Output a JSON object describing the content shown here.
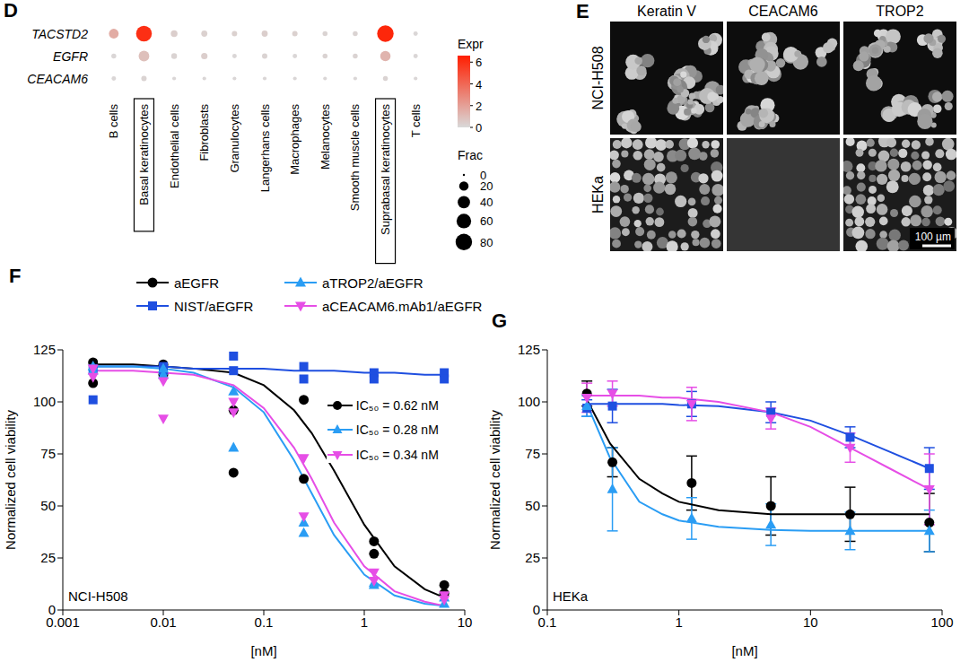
{
  "chart_data": [
    {
      "panel": "D",
      "type": "dot",
      "rows": [
        "TACSTD2",
        "EGFR",
        "CEACAM6"
      ],
      "categories": [
        "B cells",
        "Basal keratinocytes",
        "Endothelial cells",
        "Fibroblasts",
        "Granulocytes",
        "Langerhans cells",
        "Macrophages",
        "Melanocytes",
        "Smooth muscle cells",
        "Suprabasal keratinocytes",
        "T cells"
      ],
      "highlighted": [
        "Basal keratinocytes",
        "Suprabasal keratinocytes"
      ],
      "expr": [
        [
          1.6,
          6.0,
          0.4,
          0.3,
          0.3,
          0.4,
          0.3,
          0.2,
          0.2,
          6.3,
          0.1
        ],
        [
          0.1,
          0.9,
          0.2,
          0.4,
          0.1,
          0.2,
          0.1,
          0.2,
          0.2,
          1.3,
          0.1
        ],
        [
          0.1,
          0.2,
          0.1,
          0.1,
          0.1,
          0.1,
          0.1,
          0.1,
          0.1,
          0.2,
          0.1
        ]
      ],
      "frac": [
        [
          22,
          72,
          8,
          6,
          4,
          6,
          4,
          3,
          3,
          80,
          2
        ],
        [
          3,
          28,
          5,
          7,
          2,
          4,
          2,
          3,
          3,
          26,
          2
        ],
        [
          2,
          4,
          1,
          1,
          1,
          1,
          1,
          1,
          1,
          3,
          1
        ]
      ],
      "color_bar": {
        "title": "Expr",
        "range": [
          0,
          6.6
        ],
        "ticks": [
          0,
          2,
          4,
          6
        ],
        "colors": [
          "#d9d9d9",
          "#ff1e00"
        ]
      },
      "size_legend": {
        "title": "Frac",
        "values": [
          0,
          20,
          40,
          60,
          80
        ]
      }
    },
    {
      "panel": "F",
      "type": "scatter",
      "label": "NCI-H508",
      "xlabel": "[nM]",
      "ylabel": "Normalized cell viability",
      "log": "x",
      "xlim": [
        0.001,
        10
      ],
      "xticks": [
        0.001,
        0.01,
        0.1,
        1,
        10
      ],
      "ylim": [
        0,
        125
      ],
      "yticks": [
        0,
        25,
        50,
        75,
        100,
        125
      ],
      "legend": "top",
      "series": [
        {
          "name": "aEGFR",
          "color": "#000000",
          "marker": "circle",
          "x": [
            0.002,
            0.002,
            0.01,
            0.01,
            0.05,
            0.05,
            0.25,
            0.25,
            1.25,
            1.25,
            6.25,
            6.25
          ],
          "values": [
            119,
            109,
            118,
            113,
            96,
            66,
            101,
            63,
            33,
            27,
            12,
            8
          ],
          "fit": {
            "x": [
              0.002,
              0.005,
              0.01,
              0.02,
              0.05,
              0.1,
              0.2,
              0.3,
              0.5,
              1,
              2,
              4,
              6.25
            ],
            "values": [
              118,
              118,
              117,
              116,
              114,
              108,
              96,
              85,
              67,
              41,
              21,
              10,
              6
            ]
          }
        },
        {
          "name": "NIST/aEGFR",
          "color": "#1f4fe0",
          "marker": "square",
          "x": [
            0.002,
            0.002,
            0.01,
            0.01,
            0.05,
            0.05,
            0.25,
            0.25,
            1.25,
            1.25,
            6.25,
            6.25
          ],
          "values": [
            101,
            116,
            117,
            115,
            122,
            115,
            117,
            111,
            114,
            111,
            114,
            111
          ],
          "fit": {
            "x": [
              0.002,
              0.005,
              0.01,
              0.02,
              0.05,
              0.1,
              0.2,
              0.3,
              0.5,
              1,
              2,
              4,
              6.25
            ],
            "values": [
              117,
              117,
              117,
              116,
              116,
              116,
              115,
              115,
              115,
              114,
              114,
              113,
              113
            ]
          }
        },
        {
          "name": "aTROP2/aEGFR",
          "color": "#2a9df4",
          "marker": "triangle",
          "x": [
            0.002,
            0.002,
            0.01,
            0.01,
            0.05,
            0.05,
            0.25,
            0.25,
            1.25,
            1.25,
            6.25,
            6.25
          ],
          "values": [
            117,
            115,
            116,
            113,
            105,
            78,
            42,
            37,
            13,
            12,
            6,
            3
          ],
          "fit": {
            "x": [
              0.002,
              0.005,
              0.01,
              0.02,
              0.05,
              0.1,
              0.2,
              0.3,
              0.5,
              1,
              2,
              4,
              6.25
            ],
            "values": [
              117,
              117,
              116,
              114,
              107,
              95,
              72,
              56,
              36,
              17,
              7,
              3,
              2
            ]
          }
        },
        {
          "name": "aCEACAM6.mAb1/aEGFR",
          "color": "#e64ee6",
          "marker": "triangle-down",
          "x": [
            0.002,
            0.002,
            0.01,
            0.01,
            0.05,
            0.05,
            0.25,
            0.25,
            1.25,
            1.25,
            6.25,
            6.25
          ],
          "values": [
            112,
            116,
            92,
            110,
            100,
            95,
            73,
            45,
            18,
            14,
            7,
            5
          ],
          "fit": {
            "x": [
              0.002,
              0.005,
              0.01,
              0.02,
              0.05,
              0.1,
              0.2,
              0.3,
              0.5,
              1,
              2,
              4,
              6.25
            ],
            "values": [
              115,
              115,
              114,
              113,
              108,
              97,
              78,
              63,
              42,
              21,
              9,
              4,
              2
            ]
          }
        }
      ],
      "annotations": [
        {
          "series": "aEGFR",
          "text": "IC₅₀ = 0.62 nM"
        },
        {
          "series": "aTROP2/aEGFR",
          "text": "IC₅₀ = 0.28 nM"
        },
        {
          "series": "aCEACAM6.mAb1/aEGFR",
          "text": "IC₅₀ = 0.34 nM"
        }
      ]
    },
    {
      "panel": "G",
      "type": "scatter",
      "label": "HEKa",
      "xlabel": "[nM]",
      "ylabel": "Normalized cell viability",
      "log": "x",
      "xlim": [
        0.1,
        100
      ],
      "xticks": [
        0.1,
        1,
        10,
        100
      ],
      "ylim": [
        0,
        125
      ],
      "yticks": [
        0,
        25,
        50,
        75,
        100,
        125
      ],
      "series": [
        {
          "name": "aEGFR",
          "color": "#000000",
          "marker": "circle",
          "x": [
            0.2,
            0.3125,
            1.25,
            5,
            20,
            80
          ],
          "values": [
            104,
            71,
            61,
            50,
            46,
            42
          ],
          "errors": [
            6,
            7,
            13,
            14,
            13,
            14
          ],
          "fit": {
            "x": [
              0.2,
              0.3,
              0.5,
              0.75,
              1,
              2,
              5,
              10,
              20,
              40,
              80
            ],
            "values": [
              101,
              80,
              63,
              56,
              52,
              48,
              46,
              46,
              46,
              46,
              46
            ]
          }
        },
        {
          "name": "NIST/aEGFR",
          "color": "#1f4fe0",
          "marker": "square",
          "x": [
            0.2,
            0.3125,
            1.25,
            5,
            20,
            80
          ],
          "values": [
            97,
            98,
            99,
            95,
            83,
            68
          ],
          "errors": [
            4,
            8,
            6,
            5,
            5,
            10
          ],
          "fit": {
            "x": [
              0.2,
              0.3,
              0.5,
              0.75,
              1,
              2,
              5,
              10,
              20,
              40,
              80
            ],
            "values": [
              99,
              99,
              99,
              99,
              98.5,
              98,
              95,
              91,
              84,
              76,
              68
            ]
          }
        },
        {
          "name": "aTROP2/aEGFR",
          "color": "#2a9df4",
          "marker": "triangle",
          "x": [
            0.2,
            0.3125,
            1.25,
            5,
            20,
            80
          ],
          "values": [
            98,
            58,
            44,
            41,
            38,
            38
          ],
          "errors": [
            5,
            20,
            10,
            10,
            9,
            10
          ],
          "fit": {
            "x": [
              0.2,
              0.3,
              0.5,
              0.75,
              1,
              2,
              5,
              10,
              20,
              40,
              80
            ],
            "values": [
              99,
              73,
              52,
              46,
              43,
              40,
              38.5,
              38,
              38,
              38,
              38
            ]
          }
        },
        {
          "name": "aCEACAM6.mAb1/aEGFR",
          "color": "#e64ee6",
          "marker": "triangle-down",
          "x": [
            0.2,
            0.3125,
            1.25,
            5,
            20,
            80
          ],
          "values": [
            102,
            104,
            99,
            92,
            78,
            58
          ],
          "errors": [
            7,
            6,
            8,
            5,
            7,
            17
          ],
          "fit": {
            "x": [
              0.2,
              0.3,
              0.5,
              0.75,
              1,
              2,
              5,
              10,
              20,
              40,
              80
            ],
            "values": [
              103,
              103,
              103,
              102,
              102,
              100,
              95,
              88,
              78,
              68,
              58
            ]
          }
        }
      ]
    }
  ],
  "image_panel": {
    "panel": "E",
    "columns": [
      "Keratin V",
      "CEACAM6",
      "TROP2"
    ],
    "rows": [
      "NCI-H508",
      "HEKa"
    ],
    "signal": [
      [
        true,
        true,
        true
      ],
      [
        true,
        false,
        true
      ]
    ],
    "scale_bar": "100 µm"
  }
}
